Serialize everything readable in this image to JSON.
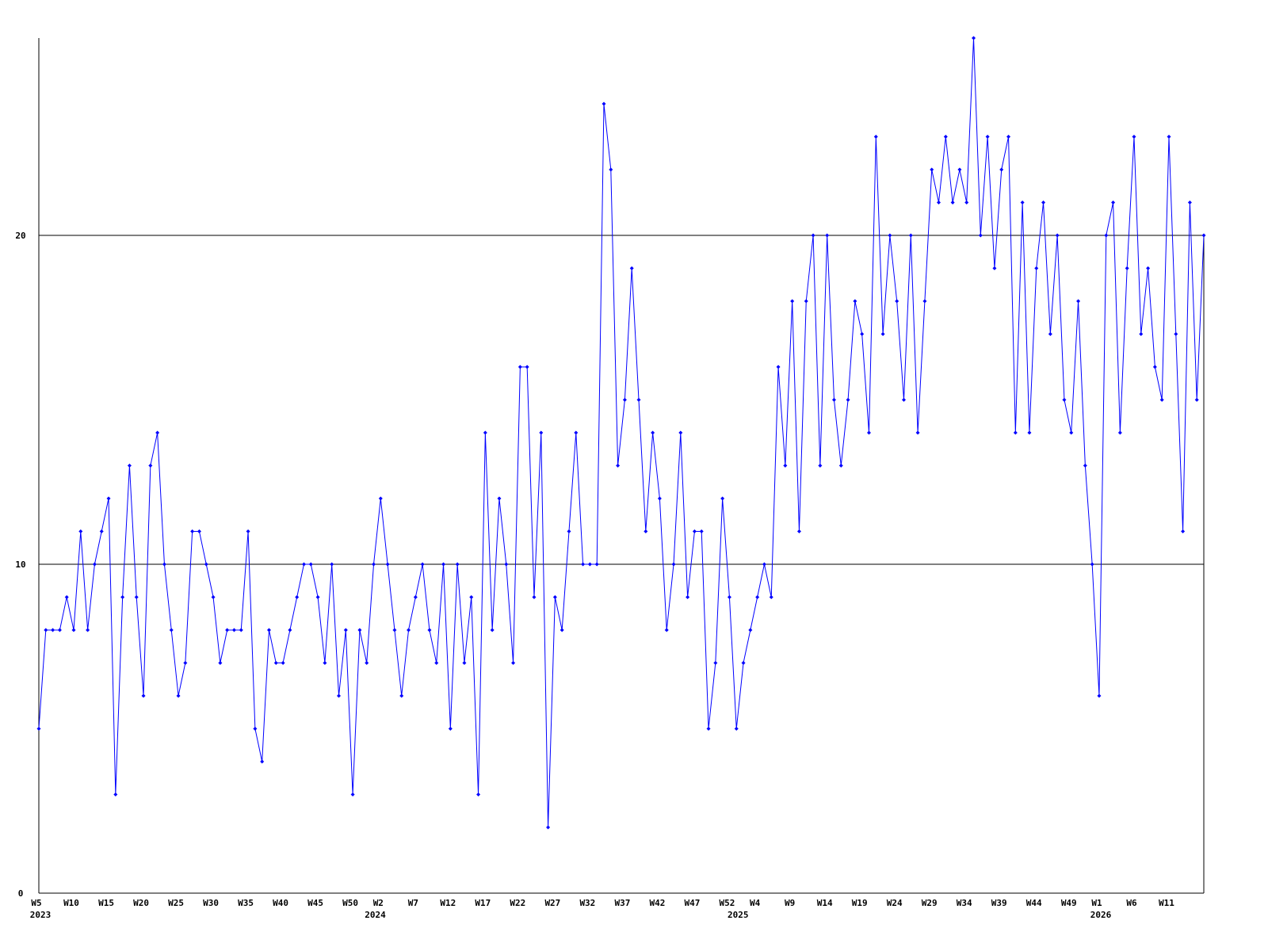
{
  "chart_data": {
    "type": "line",
    "color": "#0000ff",
    "grid": true,
    "ylim": [
      0,
      26
    ],
    "yticks": [
      0,
      10,
      20
    ],
    "categories": [
      "W5",
      null,
      null,
      null,
      null,
      "W10",
      null,
      null,
      null,
      null,
      "W15",
      null,
      null,
      null,
      null,
      "W20",
      null,
      null,
      null,
      null,
      "W25",
      null,
      null,
      null,
      null,
      "W30",
      null,
      null,
      null,
      null,
      "W35",
      null,
      null,
      null,
      null,
      "W40",
      null,
      null,
      null,
      null,
      "W45",
      null,
      null,
      null,
      null,
      "W50",
      null,
      null,
      null,
      "W2",
      null,
      null,
      null,
      null,
      "W7",
      null,
      null,
      null,
      null,
      "W12",
      null,
      null,
      null,
      null,
      "W17",
      null,
      null,
      null,
      null,
      "W22",
      null,
      null,
      null,
      null,
      "W27",
      null,
      null,
      null,
      null,
      "W32",
      null,
      null,
      null,
      null,
      "W37",
      null,
      null,
      null,
      null,
      "W42",
      null,
      null,
      null,
      null,
      "W47",
      null,
      null,
      null,
      null,
      "W52",
      null,
      null,
      null,
      "W4",
      null,
      null,
      null,
      null,
      "W9",
      null,
      null,
      null,
      null,
      "W14",
      null,
      null,
      null,
      null,
      "W19",
      null,
      null,
      null,
      null,
      "W24",
      null,
      null,
      null,
      null,
      "W29",
      null,
      null,
      null,
      null,
      "W34",
      null,
      null,
      null,
      null,
      "W39",
      null,
      null,
      null,
      null,
      "W44",
      null,
      null,
      null,
      null,
      "W49",
      null,
      null,
      null,
      "W1",
      null,
      null,
      null,
      null,
      "W6",
      null,
      null,
      null,
      null,
      "W11",
      null,
      null,
      null,
      null,
      null
    ],
    "years": [
      "2023",
      null,
      null,
      null,
      null,
      null,
      null,
      null,
      null,
      null,
      null,
      null,
      null,
      null,
      null,
      null,
      null,
      null,
      null,
      null,
      null,
      null,
      null,
      null,
      null,
      null,
      null,
      null,
      null,
      null,
      null,
      null,
      null,
      null,
      null,
      null,
      null,
      null,
      null,
      null,
      null,
      null,
      null,
      null,
      null,
      null,
      null,
      null,
      "2024",
      null,
      null,
      null,
      null,
      null,
      null,
      null,
      null,
      null,
      null,
      null,
      null,
      null,
      null,
      null,
      null,
      null,
      null,
      null,
      null,
      null,
      null,
      null,
      null,
      null,
      null,
      null,
      null,
      null,
      null,
      null,
      null,
      null,
      null,
      null,
      null,
      null,
      null,
      null,
      null,
      null,
      null,
      null,
      null,
      null,
      null,
      null,
      null,
      null,
      null,
      null,
      "2025",
      null,
      null,
      null,
      null,
      null,
      null,
      null,
      null,
      null,
      null,
      null,
      null,
      null,
      null,
      null,
      null,
      null,
      null,
      null,
      null,
      null,
      null,
      null,
      null,
      null,
      null,
      null,
      null,
      null,
      null,
      null,
      null,
      null,
      null,
      null,
      null,
      null,
      null,
      null,
      null,
      null,
      null,
      null,
      null,
      null,
      null,
      null,
      null,
      null,
      null,
      null,
      "2026",
      null,
      null,
      null,
      null,
      null,
      null,
      null,
      null,
      null,
      null,
      null,
      null,
      null,
      null,
      null
    ],
    "values": [
      5,
      8,
      8,
      8,
      9,
      8,
      11,
      8,
      10,
      11,
      12,
      3,
      9,
      13,
      9,
      6,
      13,
      14,
      10,
      8,
      6,
      7,
      11,
      11,
      10,
      9,
      7,
      8,
      8,
      8,
      11,
      5,
      4,
      8,
      7,
      7,
      8,
      9,
      10,
      10,
      9,
      7,
      10,
      6,
      8,
      3,
      8,
      7,
      10,
      12,
      10,
      8,
      6,
      8,
      9,
      10,
      8,
      7,
      10,
      5,
      10,
      7,
      9,
      3,
      14,
      8,
      12,
      10,
      7,
      16,
      16,
      9,
      14,
      2,
      9,
      8,
      11,
      14,
      10,
      10,
      10,
      24,
      22,
      13,
      15,
      19,
      15,
      11,
      14,
      12,
      8,
      10,
      14,
      9,
      11,
      11,
      5,
      7,
      12,
      9,
      5,
      7,
      8,
      9,
      10,
      9,
      16,
      13,
      18,
      11,
      18,
      20,
      13,
      20,
      15,
      13,
      15,
      18,
      17,
      14,
      23,
      17,
      20,
      18,
      15,
      20,
      14,
      18,
      22,
      21,
      23,
      21,
      22,
      21,
      26,
      20,
      23,
      19,
      22,
      23,
      14,
      21,
      14,
      19,
      21,
      17,
      20,
      15,
      14,
      18,
      13,
      10,
      6,
      20,
      21,
      14,
      19,
      23,
      17,
      19,
      16,
      15,
      23,
      17,
      11,
      21,
      15,
      20
    ]
  }
}
